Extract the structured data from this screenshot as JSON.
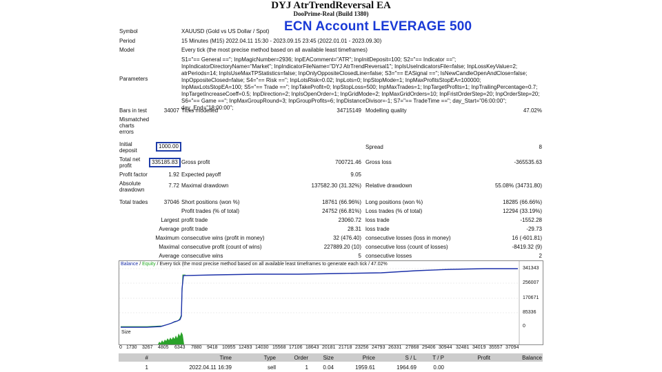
{
  "header": {
    "title": "DYJ AtrTrendReversal EA",
    "subtitle": "DooPrime-Real (Build 1380)",
    "overlay": "ECN Account   LEVERAGE 500"
  },
  "report": {
    "symbol_label": "Symbol",
    "symbol_value": "XAUUSD (Gold vs US Dollar / Spot)",
    "period_label": "Period",
    "period_value": "15 Minutes (M15) 2022.04.11 15:30 - 2023.09.15 23:45 (2022.01.01 - 2023.09.30)",
    "model_label": "Model",
    "model_value": "Every tick (the most precise method based on all available least timeframes)",
    "parameters_label": "Parameters",
    "parameters_value": "S1=\"== General ==\"; InpMagicNumber=2936; InpEAComment=\"ATR\"; InpInitDeposit=100; S2=\"== Indicator ==\"; InpIndicatorDirectoryName=\"Market\"; InpIndicatorFileName=\"DYJ AtrTrendReversal1\"; InpIsUseIndicatorsFile=false; InpLossKeyValue=2; atrPeriods=14; InpIsUseMaxTPStatistics=false; InpOnlyOppositeClosedLine=false; S3=\"== EASignal ==\"; IsNewCandleOpenAndClose=false; InpOppositeClosed=false; S4=\"== Risk ==\"; InpLotsRisk=0.02; InpLots=0; InpStopMode=1; InpMaxProfitsStopEA=100000; InpMaxLotsStopEA=100; S5=\"== Trade ==\"; InpTakeProfit=0; InpStopLoss=500; InpMaxTrades=1; InpTargetProfits=1; InpTrailingPercentage=0.7; InpTargetIncreaseCoeff=0.5; InpDirection=2; InpIsOpenOrder=1; InpGridMode=2; InpMaxGridOrders=10; InpFristOrderStep=20; InpOrderStep=20; S6=\"== Game ==\"; InpMaxGroupRound=3; InpGroupProfits=6; InpDistanceDivisor=-1; S7=\"== TradeTime ==\"; day_Start=\"06:00:00\"; day_End=\"18:00:00\";",
    "bars_label": "Bars in test",
    "bars_value": "34007",
    "ticks_label": "Ticks modelled",
    "ticks_value": "34715149",
    "quality_label": "Modelling quality",
    "quality_value": "47.02%",
    "mismatch_label_1": "Mismatched",
    "mismatch_label_2": "charts",
    "mismatch_label_3": "errors",
    "deposit_label_1": "Initial",
    "deposit_label_2": "deposit",
    "deposit_value": "1000.00",
    "spread_label": "Spread",
    "spread_value": "8",
    "netprofit_label_1": "Total net",
    "netprofit_label_2": "profit",
    "netprofit_value": "335185.83",
    "grossprofit_label": "Gross profit",
    "grossprofit_value": "700721.46",
    "grossloss_label": "Gross loss",
    "grossloss_value": "-365535.63",
    "pf_label": "Profit factor",
    "pf_value": "1.92",
    "expected_label": "Expected payoff",
    "expected_value": "9.05",
    "absdd_label_1": "Absolute",
    "absdd_label_2": "drawdown",
    "absdd_value": "7.72",
    "maxdd_label": "Maximal drawdown",
    "maxdd_value": "137582.30 (31.32%)",
    "reldd_label": "Relative drawdown",
    "reldd_value": "55.08% (34731.80)",
    "trades_label": "Total trades",
    "trades_value": "37046",
    "short_label": "Short positions (won %)",
    "short_value": "18761 (66.96%)",
    "long_label": "Long positions (won %)",
    "long_value": "18285 (66.66%)",
    "ptrades_label": "Profit trades (% of total)",
    "ptrades_value": "24752 (66.81%)",
    "ltrades_label": "Loss trades (% of total)",
    "ltrades_value": "12294 (33.19%)",
    "largest_label": "Largest",
    "lprofit_label": "profit trade",
    "lprofit_value": "23060.72",
    "lloss_label": "loss trade",
    "lloss_value": "-1552.28",
    "average_label": "Average",
    "aprofit_label": "profit trade",
    "aprofit_value": "28.31",
    "aloss_label": "loss trade",
    "aloss_value": "-29.73",
    "maximum_label": "Maximum",
    "cwins_label": "consecutive wins (profit in money)",
    "cwins_value": "32 (476.40)",
    "closses_label": "consecutive losses (loss in money)",
    "closses_value": "16 (-601.81)",
    "maximal_label": "Maximal",
    "cprofit_label": "consecutive profit (count of wins)",
    "cprofit_value": "227889.20 (10)",
    "closs_label": "consecutive loss (count of losses)",
    "closs_value": "-8419.32 (9)",
    "average2_label": "Average",
    "avgwins_label": "consecutive wins",
    "avgwins_value": "5",
    "avglosses_label": "consecutive losses",
    "avglosses_value": "2"
  },
  "graph": {
    "legend_balance": "Balance",
    "legend_sep1": " / ",
    "legend_equity": "Equity",
    "legend_rest": " / Every tick (the most precise method based on all available least timeframes to generate each tick",
    "legend_quality": " / 47.02%",
    "y_ticks": [
      "341343",
      "256007",
      "170671",
      "85336",
      "0"
    ],
    "size_label": "Size",
    "x_ticks": [
      "0",
      "1730",
      "3267",
      "4805",
      "6343",
      "7880",
      "9418",
      "10955",
      "12493",
      "14030",
      "15568",
      "17106",
      "18643",
      "20181",
      "21718",
      "23256",
      "24793",
      "26331",
      "27868",
      "29406",
      "30944",
      "32481",
      "34019",
      "35557",
      "37094"
    ],
    "colors": {
      "balance": "#1a2fa8",
      "equity": "#22aa22",
      "size": "#2aa22a"
    }
  },
  "table": {
    "headers": [
      "#",
      "Time",
      "Type",
      "Order",
      "Size",
      "Price",
      "S / L",
      "T / P",
      "Profit",
      "Balance"
    ],
    "rows": [
      [
        "1",
        "2022.04.11 16:39",
        "sell",
        "1",
        "0.04",
        "1959.61",
        "1964.69",
        "0.00",
        "",
        ""
      ]
    ]
  }
}
